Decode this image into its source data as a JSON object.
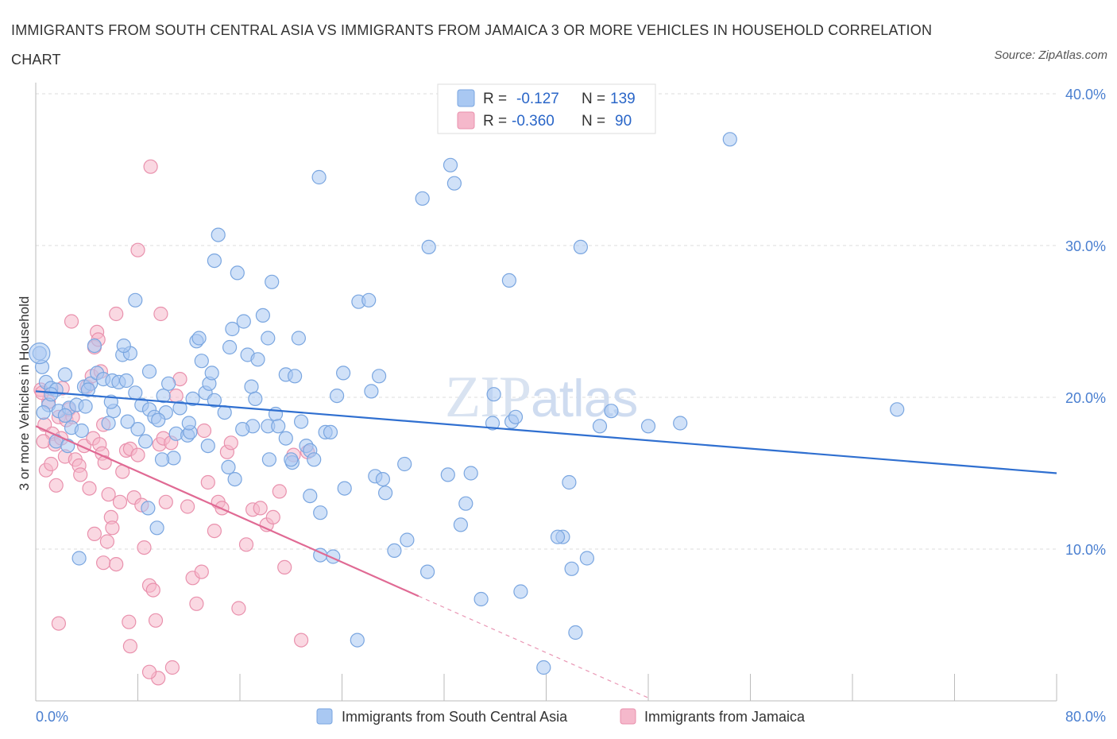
{
  "title": "IMMIGRANTS FROM SOUTH CENTRAL ASIA VS IMMIGRANTS FROM JAMAICA 3 OR MORE VEHICLES IN HOUSEHOLD CORRELATION CHART",
  "source": "Source: ZipAtlas.com",
  "watermark": "ZIPatlas",
  "legend": {
    "rows": [
      {
        "r_label": "R =",
        "r_value": "-0.127",
        "n_label": "N =",
        "n_value": "139",
        "color": "#a9c8f2"
      },
      {
        "r_label": "R =",
        "r_value": "-0.360",
        "n_label": "N =",
        "n_value": "90",
        "color": "#f5b8cb"
      }
    ]
  },
  "bottom_legend": {
    "series1": "Immigrants from South Central Asia",
    "series2": "Immigrants from Jamaica"
  },
  "colors": {
    "blue_fill": "#a9c8f2",
    "blue_stroke": "#7aa6e0",
    "blue_line": "#2f6fd0",
    "pink_fill": "#f5b8cb",
    "pink_stroke": "#e991ad",
    "pink_line": "#e06a94",
    "grid": "#dcdcdc",
    "tick_text": "#4a7fd0"
  },
  "chart_data": {
    "type": "scatter",
    "title": "IMMIGRANTS FROM SOUTH CENTRAL ASIA VS IMMIGRANTS FROM JAMAICA 3 OR MORE VEHICLES IN HOUSEHOLD CORRELATION CHART",
    "xlabel": "",
    "ylabel": "3 or more Vehicles in Household",
    "xlim": [
      0,
      80
    ],
    "ylim": [
      0,
      40
    ],
    "x_tick_labels": [
      "0.0%",
      "80.0%"
    ],
    "y_tick_values": [
      10,
      20,
      30,
      40
    ],
    "y_tick_labels": [
      "10.0%",
      "20.0%",
      "30.0%",
      "40.0%"
    ],
    "grid": true,
    "legend_position": "top-center",
    "series": [
      {
        "name": "Immigrants from South Central Asia",
        "R": -0.127,
        "N": 139,
        "trend": {
          "x": [
            0,
            80
          ],
          "y": [
            20.4,
            15.0
          ]
        },
        "points": [
          [
            0.3,
            22.9
          ],
          [
            0.5,
            22.0
          ],
          [
            0.8,
            21.0
          ],
          [
            1.2,
            20.6
          ],
          [
            1.6,
            20.5
          ],
          [
            2.3,
            21.5
          ],
          [
            1.0,
            19.5
          ],
          [
            1.8,
            19.1
          ],
          [
            2.6,
            19.3
          ],
          [
            3.2,
            19.5
          ],
          [
            2.8,
            18.0
          ],
          [
            3.6,
            17.8
          ],
          [
            1.6,
            17.1
          ],
          [
            2.3,
            18.8
          ],
          [
            3.8,
            20.7
          ],
          [
            4.3,
            20.9
          ],
          [
            4.8,
            21.6
          ],
          [
            5.3,
            21.2
          ],
          [
            6.0,
            21.1
          ],
          [
            6.5,
            21.0
          ],
          [
            7.1,
            21.1
          ],
          [
            6.8,
            22.8
          ],
          [
            7.4,
            22.9
          ],
          [
            4.6,
            23.4
          ],
          [
            6.9,
            23.4
          ],
          [
            7.8,
            20.3
          ],
          [
            8.3,
            19.5
          ],
          [
            8.9,
            19.2
          ],
          [
            9.3,
            18.7
          ],
          [
            10.2,
            19.0
          ],
          [
            9.6,
            18.5
          ],
          [
            10.0,
            20.1
          ],
          [
            11.3,
            19.3
          ],
          [
            12.3,
            19.9
          ],
          [
            13.3,
            20.3
          ],
          [
            11.0,
            17.6
          ],
          [
            11.9,
            17.5
          ],
          [
            12.1,
            17.7
          ],
          [
            8.6,
            17.1
          ],
          [
            10.8,
            16.0
          ],
          [
            6.1,
            19.1
          ],
          [
            5.7,
            18.3
          ],
          [
            8.0,
            17.9
          ],
          [
            3.4,
            9.4
          ],
          [
            7.8,
            26.4
          ],
          [
            8.9,
            21.7
          ],
          [
            10.4,
            20.9
          ],
          [
            12.6,
            23.7
          ],
          [
            12.8,
            23.9
          ],
          [
            13.0,
            22.4
          ],
          [
            13.6,
            20.9
          ],
          [
            13.8,
            21.6
          ],
          [
            14.0,
            19.8
          ],
          [
            14.8,
            19.0
          ],
          [
            15.2,
            23.3
          ],
          [
            15.4,
            24.5
          ],
          [
            15.8,
            28.2
          ],
          [
            14.0,
            29.0
          ],
          [
            14.3,
            30.7
          ],
          [
            16.3,
            25.0
          ],
          [
            16.6,
            22.8
          ],
          [
            16.9,
            20.7
          ],
          [
            17.2,
            19.9
          ],
          [
            17.4,
            22.5
          ],
          [
            17.8,
            25.4
          ],
          [
            18.2,
            23.9
          ],
          [
            18.8,
            18.9
          ],
          [
            18.2,
            18.1
          ],
          [
            19.0,
            18.1
          ],
          [
            17.0,
            18.1
          ],
          [
            19.6,
            21.5
          ],
          [
            20.3,
            21.4
          ],
          [
            20.6,
            23.9
          ],
          [
            19.6,
            17.3
          ],
          [
            20.8,
            18.4
          ],
          [
            21.2,
            16.8
          ],
          [
            20.1,
            15.7
          ],
          [
            18.3,
            15.9
          ],
          [
            15.1,
            15.4
          ],
          [
            15.6,
            14.6
          ],
          [
            18.5,
            27.6
          ],
          [
            20.0,
            15.9
          ],
          [
            21.5,
            16.5
          ],
          [
            22.7,
            17.7
          ],
          [
            23.6,
            20.1
          ],
          [
            23.1,
            17.7
          ],
          [
            24.1,
            21.6
          ],
          [
            22.3,
            12.4
          ],
          [
            21.8,
            15.9
          ],
          [
            21.5,
            13.5
          ],
          [
            24.2,
            14.0
          ],
          [
            25.3,
            26.3
          ],
          [
            26.1,
            26.4
          ],
          [
            26.3,
            20.4
          ],
          [
            26.9,
            21.4
          ],
          [
            26.6,
            14.8
          ],
          [
            27.2,
            14.6
          ],
          [
            27.4,
            13.7
          ],
          [
            28.1,
            9.9
          ],
          [
            28.9,
            15.6
          ],
          [
            29.1,
            10.6
          ],
          [
            30.3,
            33.1
          ],
          [
            30.8,
            29.9
          ],
          [
            30.7,
            8.5
          ],
          [
            32.3,
            14.9
          ],
          [
            32.5,
            35.3
          ],
          [
            32.8,
            34.1
          ],
          [
            33.3,
            11.6
          ],
          [
            33.7,
            13.0
          ],
          [
            34.1,
            15.0
          ],
          [
            34.9,
            6.7
          ],
          [
            35.8,
            18.3
          ],
          [
            37.1,
            27.7
          ],
          [
            37.3,
            18.4
          ],
          [
            38.0,
            7.2
          ],
          [
            35.4,
            38.4
          ],
          [
            37.6,
            18.7
          ],
          [
            35.9,
            20.2
          ],
          [
            41.3,
            10.8
          ],
          [
            40.9,
            10.8
          ],
          [
            42.0,
            8.7
          ],
          [
            42.3,
            4.5
          ],
          [
            42.7,
            29.9
          ],
          [
            43.2,
            9.4
          ],
          [
            39.8,
            2.2
          ],
          [
            44.2,
            18.1
          ],
          [
            45.1,
            19.1
          ],
          [
            41.8,
            14.4
          ],
          [
            48.0,
            18.1
          ],
          [
            50.5,
            18.3
          ],
          [
            54.4,
            37.0
          ],
          [
            67.5,
            19.2
          ],
          [
            22.2,
            34.5
          ],
          [
            22.3,
            9.6
          ],
          [
            23.3,
            9.5
          ],
          [
            25.2,
            4.0
          ],
          [
            9.5,
            11.4
          ],
          [
            8.8,
            12.7
          ],
          [
            7.2,
            18.4
          ],
          [
            5.9,
            19.7
          ],
          [
            9.9,
            15.9
          ],
          [
            16.2,
            17.9
          ],
          [
            13.5,
            16.8
          ],
          [
            12.0,
            18.3
          ],
          [
            3.9,
            19.4
          ],
          [
            4.1,
            20.5
          ],
          [
            2.5,
            16.8
          ],
          [
            1.2,
            20.2
          ],
          [
            0.6,
            19.0
          ]
        ]
      },
      {
        "name": "Immigrants from Jamaica",
        "R": -0.36,
        "N": 90,
        "trend": {
          "x": [
            0,
            30
          ],
          "y": [
            18.1,
            6.9
          ]
        },
        "trend_extension": {
          "x": [
            30,
            48
          ],
          "y": [
            6.9,
            0.2
          ]
        },
        "points": [
          [
            0.4,
            20.5
          ],
          [
            0.7,
            18.2
          ],
          [
            1.0,
            19.7
          ],
          [
            1.3,
            17.6
          ],
          [
            1.5,
            16.9
          ],
          [
            1.8,
            18.7
          ],
          [
            2.1,
            20.6
          ],
          [
            2.4,
            18.5
          ],
          [
            0.6,
            17.1
          ],
          [
            0.8,
            15.2
          ],
          [
            1.2,
            15.6
          ],
          [
            1.6,
            14.2
          ],
          [
            2.0,
            17.3
          ],
          [
            2.3,
            16.1
          ],
          [
            2.6,
            19.2
          ],
          [
            2.9,
            18.7
          ],
          [
            3.1,
            15.9
          ],
          [
            3.4,
            15.5
          ],
          [
            3.5,
            14.9
          ],
          [
            3.8,
            16.8
          ],
          [
            4.0,
            20.7
          ],
          [
            4.4,
            21.4
          ],
          [
            4.6,
            23.3
          ],
          [
            4.8,
            24.3
          ],
          [
            4.9,
            23.8
          ],
          [
            5.1,
            21.7
          ],
          [
            5.3,
            18.2
          ],
          [
            4.5,
            17.3
          ],
          [
            4.2,
            14.0
          ],
          [
            4.6,
            11.0
          ],
          [
            5.0,
            16.9
          ],
          [
            5.2,
            16.3
          ],
          [
            5.4,
            15.7
          ],
          [
            5.7,
            13.6
          ],
          [
            5.9,
            12.1
          ],
          [
            6.0,
            11.4
          ],
          [
            5.6,
            10.5
          ],
          [
            5.3,
            9.1
          ],
          [
            6.3,
            9.0
          ],
          [
            6.6,
            13.1
          ],
          [
            6.8,
            15.1
          ],
          [
            7.1,
            16.5
          ],
          [
            7.4,
            16.6
          ],
          [
            7.7,
            13.4
          ],
          [
            8.0,
            16.2
          ],
          [
            8.3,
            12.9
          ],
          [
            8.5,
            10.1
          ],
          [
            8.9,
            7.6
          ],
          [
            9.2,
            7.3
          ],
          [
            9.4,
            5.3
          ],
          [
            9.7,
            16.9
          ],
          [
            10.0,
            17.3
          ],
          [
            10.2,
            13.1
          ],
          [
            10.6,
            17.0
          ],
          [
            11.0,
            20.1
          ],
          [
            11.3,
            21.2
          ],
          [
            11.9,
            12.8
          ],
          [
            12.3,
            8.1
          ],
          [
            12.6,
            6.4
          ],
          [
            13.0,
            8.5
          ],
          [
            13.2,
            17.8
          ],
          [
            13.5,
            14.4
          ],
          [
            14.0,
            11.2
          ],
          [
            14.3,
            13.1
          ],
          [
            14.6,
            12.7
          ],
          [
            15.0,
            16.4
          ],
          [
            15.3,
            17.0
          ],
          [
            15.9,
            6.1
          ],
          [
            16.5,
            10.3
          ],
          [
            17.0,
            12.6
          ],
          [
            17.6,
            12.7
          ],
          [
            18.1,
            11.6
          ],
          [
            18.6,
            12.1
          ],
          [
            19.1,
            13.8
          ],
          [
            19.5,
            8.8
          ],
          [
            20.2,
            16.2
          ],
          [
            20.8,
            4.0
          ],
          [
            21.3,
            16.4
          ],
          [
            9.0,
            35.2
          ],
          [
            8.0,
            29.7
          ],
          [
            2.8,
            25.0
          ],
          [
            6.3,
            25.5
          ],
          [
            9.8,
            25.5
          ],
          [
            1.8,
            5.1
          ],
          [
            7.3,
            5.2
          ],
          [
            7.4,
            3.6
          ],
          [
            9.6,
            1.5
          ],
          [
            10.7,
            2.2
          ],
          [
            8.9,
            1.9
          ],
          [
            0.5,
            20.3
          ]
        ]
      }
    ]
  }
}
